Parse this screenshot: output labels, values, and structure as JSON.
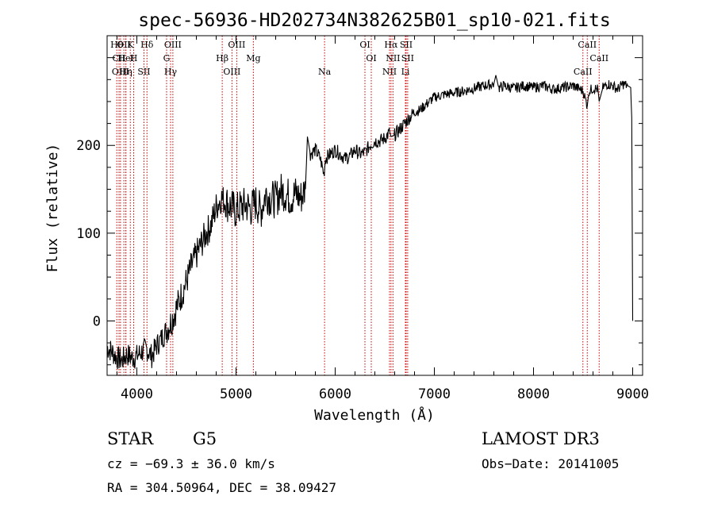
{
  "chart_data": {
    "type": "line",
    "title": "spec-56936-HD202734N382625B01_sp10-021.fits",
    "xlabel": "Wavelength (Å)",
    "ylabel": "Flux (relative)",
    "xlim": [
      3700,
      9100
    ],
    "ylim": [
      -62,
      325
    ],
    "x_ticks": [
      4000,
      5000,
      6000,
      7000,
      8000,
      9000
    ],
    "y_ticks": [
      0,
      100,
      200
    ],
    "grid": false,
    "legend": "none",
    "series": [
      {
        "x": [
          3700,
          3750,
          3800,
          3850,
          3900,
          3950,
          4000,
          4050,
          4100,
          4150,
          4200,
          4250,
          4300,
          4350,
          4400,
          4450,
          4500,
          4550,
          4600,
          4650,
          4700,
          4750,
          4800,
          4850,
          4900,
          4950,
          5000,
          5050,
          5100,
          5150,
          5200,
          5250,
          5300,
          5350,
          5400,
          5450,
          5500,
          5550,
          5600,
          5650,
          5700,
          5720,
          5750,
          5800,
          5850,
          5890,
          5900,
          5950,
          6000,
          6050,
          6100,
          6150,
          6200,
          6250,
          6300,
          6350,
          6400,
          6450,
          6500,
          6550,
          6563,
          6600,
          6650,
          6700,
          6750,
          6800,
          6850,
          6900,
          6950,
          7000,
          7100,
          7200,
          7300,
          7400,
          7500,
          7600,
          7620,
          7650,
          7700,
          7800,
          7900,
          8000,
          8100,
          8200,
          8300,
          8400,
          8450,
          8500,
          8542,
          8560,
          8600,
          8650,
          8662,
          8700,
          8750,
          8800,
          8850,
          8900,
          8950,
          8980,
          8990,
          9000
        ],
        "y": [
          -30,
          -35,
          -42,
          -45,
          -38,
          -42,
          -40,
          -35,
          -32,
          -40,
          -28,
          -20,
          -10,
          0,
          15,
          30,
          45,
          62,
          75,
          88,
          100,
          110,
          130,
          140,
          135,
          130,
          125,
          130,
          132,
          128,
          135,
          125,
          145,
          140,
          138,
          148,
          145,
          140,
          145,
          140,
          150,
          210,
          190,
          195,
          185,
          165,
          185,
          190,
          195,
          190,
          185,
          188,
          195,
          190,
          192,
          200,
          205,
          205,
          208,
          215,
          210,
          212,
          218,
          225,
          232,
          238,
          240,
          245,
          250,
          255,
          258,
          260,
          262,
          265,
          268,
          270,
          280,
          265,
          268,
          265,
          268,
          266,
          268,
          264,
          266,
          268,
          265,
          262,
          245,
          262,
          265,
          264,
          250,
          266,
          270,
          268,
          264,
          270,
          268,
          266,
          232,
          0
        ]
      }
    ],
    "line_markers": [
      {
        "x": 3798,
        "label": "Hθ"
      },
      {
        "x": 3820,
        "label": "CII"
      },
      {
        "x": 3835,
        "label": "OIII"
      },
      {
        "x": 3869,
        "label": "OII"
      },
      {
        "x": 3889,
        "label": "HeI"
      },
      {
        "x": 3889,
        "label": "Hη"
      },
      {
        "x": 3934,
        "label": "K"
      },
      {
        "x": 3968,
        "label": "H"
      },
      {
        "x": 4072,
        "label": "SII"
      },
      {
        "x": 4102,
        "label": "Hδ"
      },
      {
        "x": 4300,
        "label": "G"
      },
      {
        "x": 4340,
        "label": "Hγ"
      },
      {
        "x": 4363,
        "label": "OIII"
      },
      {
        "x": 4861,
        "label": "Hβ"
      },
      {
        "x": 4959,
        "label": "OIII"
      },
      {
        "x": 5007,
        "label": "OIII"
      },
      {
        "x": 5175,
        "label": "Mg"
      },
      {
        "x": 5893,
        "label": "Na"
      },
      {
        "x": 6300,
        "label": "OI"
      },
      {
        "x": 6364,
        "label": "OI"
      },
      {
        "x": 6548,
        "label": "NII"
      },
      {
        "x": 6563,
        "label": "Hα"
      },
      {
        "x": 6583,
        "label": "NII"
      },
      {
        "x": 6708,
        "label": "Li"
      },
      {
        "x": 6716,
        "label": "SII"
      },
      {
        "x": 6731,
        "label": "SII"
      },
      {
        "x": 8498,
        "label": "CaII"
      },
      {
        "x": 8542,
        "label": "CaII"
      },
      {
        "x": 8662,
        "label": "CaII"
      }
    ],
    "marker_color": "#cc0000"
  },
  "footer": {
    "object_class": "STAR",
    "subclass": "G5",
    "survey": "LAMOST DR3",
    "redshift": "cz = −69.3 ± 36.0 km/s",
    "obs_date": "Obs−Date: 20141005",
    "coords": "RA = 304.50964, DEC =  38.09427"
  }
}
